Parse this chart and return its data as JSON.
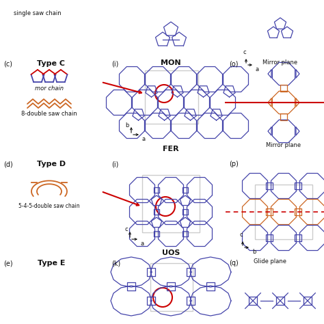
{
  "bg_color": "#ffffff",
  "colors": {
    "blue": "#4444aa",
    "orange": "#cc6622",
    "red": "#cc0000",
    "black": "#111111",
    "gray": "#aaaaaa",
    "lightgray": "#cccccc"
  },
  "sections": {
    "top_text": "single saw chain",
    "mon_label": "MON",
    "mirror_plane_top": "Mirror plane",
    "c_label": "(c)",
    "c_type": "Type C",
    "c_chain1": "mor chain",
    "c_chain2": "8-double saw chain",
    "i_label_fer": "(i)",
    "fer_label": "FER",
    "fer_b": "b",
    "fer_a": "a",
    "o_label": "(o)",
    "o_c": "c",
    "o_a": "a",
    "o_mirror": "Mirror plane",
    "d_label": "(d)",
    "d_type": "Type D",
    "d_chain": "5-4-5-double saw chain",
    "i_label_uos": "(i)",
    "uos_label": "UOS",
    "uos_c": "c",
    "uos_a": "a",
    "p_label": "(p)",
    "p_c": "c",
    "p_b": "b",
    "p_glide": "Glide plane",
    "e_label": "(e)",
    "e_type": "Type E",
    "k_label": "(k)",
    "q_label": "(q)"
  }
}
